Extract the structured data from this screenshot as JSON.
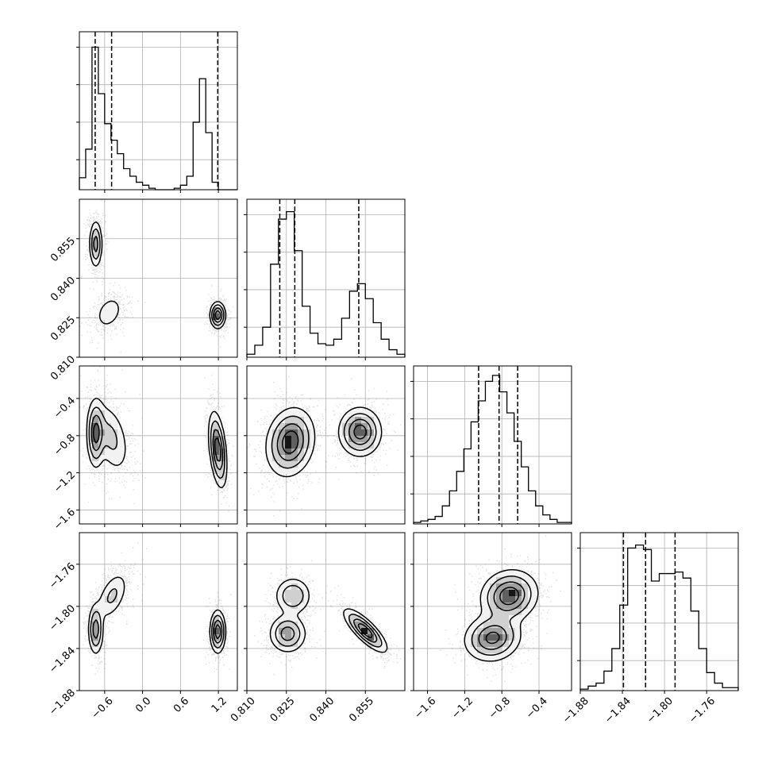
{
  "chart_data": {
    "type": "corner",
    "params": [
      {
        "ticks": [
          -0.6,
          0.0,
          0.6,
          1.2
        ],
        "tick_labels": [
          "−0.6",
          "0.0",
          "0.6",
          "1.2"
        ],
        "range": [
          -1.0,
          1.5
        ]
      },
      {
        "ticks": [
          0.81,
          0.825,
          0.84,
          0.855
        ],
        "tick_labels": [
          "0.810",
          "0.825",
          "0.840",
          "0.855"
        ],
        "range": [
          0.81,
          0.87
        ]
      },
      {
        "ticks": [
          -1.6,
          -1.2,
          -0.8,
          -0.4
        ],
        "tick_labels": [
          "−1.6",
          "−1.2",
          "−0.8",
          "−0.4"
        ],
        "range": [
          -1.75,
          -0.05
        ]
      },
      {
        "ticks": [
          -1.88,
          -1.84,
          -1.8,
          -1.76
        ],
        "tick_labels": [
          "−1.88",
          "−1.84",
          "−1.80",
          "−1.76"
        ],
        "range": [
          -1.88,
          -1.73
        ]
      }
    ],
    "histograms": [
      {
        "edges_range": [
          -1.0,
          1.5
        ],
        "counts": [
          0.08,
          0.27,
          0.95,
          0.64,
          0.44,
          0.33,
          0.24,
          0.14,
          0.09,
          0.05,
          0.03,
          0.01,
          0.0,
          0.0,
          0.0,
          0.01,
          0.03,
          0.09,
          0.45,
          0.74,
          0.38,
          0.05,
          0.0,
          0.0,
          0.0
        ],
        "quantiles": [
          -0.75,
          -0.49,
          1.19
        ]
      },
      {
        "edges_range": [
          0.81,
          0.87
        ],
        "counts": [
          0.02,
          0.08,
          0.2,
          0.62,
          0.92,
          0.97,
          0.71,
          0.34,
          0.16,
          0.09,
          0.08,
          0.12,
          0.26,
          0.44,
          0.49,
          0.39,
          0.23,
          0.12,
          0.05,
          0.02
        ],
        "quantiles": [
          0.8225,
          0.8282,
          0.8525
        ]
      },
      {
        "edges_range": [
          -1.75,
          -0.05
        ],
        "counts": [
          0.01,
          0.02,
          0.03,
          0.05,
          0.12,
          0.22,
          0.35,
          0.5,
          0.68,
          0.82,
          0.95,
          0.99,
          0.88,
          0.74,
          0.55,
          0.38,
          0.22,
          0.12,
          0.06,
          0.03,
          0.01,
          0.01
        ],
        "quantiles": [
          -1.05,
          -0.83,
          -0.63
        ]
      },
      {
        "edges_range": [
          -1.88,
          -1.73
        ],
        "counts": [
          0.01,
          0.03,
          0.05,
          0.13,
          0.28,
          0.57,
          0.95,
          0.97,
          0.94,
          0.73,
          0.78,
          0.78,
          0.79,
          0.75,
          0.53,
          0.28,
          0.12,
          0.05,
          0.02,
          0.02
        ],
        "quantiles": [
          -1.839,
          -1.818,
          -1.79
        ]
      }
    ],
    "pair_modes": [
      {
        "row": 1,
        "col": 0,
        "modes": [
          {
            "mx": -0.74,
            "my": 0.853,
            "sx": 0.05,
            "sy": 0.0045,
            "w": 0.38,
            "r": 0
          },
          {
            "mx": -0.53,
            "my": 0.827,
            "sx": 0.12,
            "sy": 0.0035,
            "w": 0.25,
            "r": 0.3
          },
          {
            "mx": 1.19,
            "my": 0.826,
            "sx": 0.06,
            "sy": 0.0025,
            "w": 0.37,
            "r": 0
          }
        ]
      },
      {
        "row": 2,
        "col": 0,
        "modes": [
          {
            "mx": -0.74,
            "my": -0.78,
            "sx": 0.07,
            "sy": 0.18,
            "w": 0.32,
            "r": 0
          },
          {
            "mx": -0.5,
            "my": -0.82,
            "sx": 0.15,
            "sy": 0.2,
            "w": 0.3,
            "r": -0.4
          },
          {
            "mx": 1.19,
            "my": -0.95,
            "sx": 0.07,
            "sy": 0.2,
            "w": 0.38,
            "r": -0.4
          }
        ]
      },
      {
        "row": 2,
        "col": 1,
        "modes": [
          {
            "mx": 0.8265,
            "my": -0.87,
            "sx": 0.0045,
            "sy": 0.18,
            "w": 0.62,
            "r": 0.15
          },
          {
            "mx": 0.853,
            "my": -0.76,
            "sx": 0.004,
            "sy": 0.13,
            "w": 0.38,
            "r": 0
          }
        ]
      },
      {
        "row": 3,
        "col": 0,
        "modes": [
          {
            "mx": -0.74,
            "my": -1.822,
            "sx": 0.06,
            "sy": 0.012,
            "w": 0.32,
            "r": 0
          },
          {
            "mx": -0.48,
            "my": -1.79,
            "sx": 0.13,
            "sy": 0.012,
            "w": 0.3,
            "r": 0.5
          },
          {
            "mx": 1.19,
            "my": -1.824,
            "sx": 0.06,
            "sy": 0.01,
            "w": 0.38,
            "r": 0
          }
        ]
      },
      {
        "row": 3,
        "col": 1,
        "modes": [
          {
            "mx": 0.8255,
            "my": -1.826,
            "sx": 0.0035,
            "sy": 0.009,
            "w": 0.35,
            "r": 0
          },
          {
            "mx": 0.8275,
            "my": -1.79,
            "sx": 0.0035,
            "sy": 0.009,
            "w": 0.27,
            "r": 0
          },
          {
            "mx": 0.855,
            "my": -1.823,
            "sx": 0.004,
            "sy": 0.01,
            "w": 0.38,
            "r": -0.8
          }
        ]
      },
      {
        "row": 3,
        "col": 2,
        "modes": [
          {
            "mx": -0.9,
            "my": -1.83,
            "sx": 0.15,
            "sy": 0.011,
            "w": 0.45,
            "r": 0.1
          },
          {
            "mx": -0.72,
            "my": -1.79,
            "sx": 0.15,
            "sy": 0.012,
            "w": 0.55,
            "r": 0.1
          }
        ]
      }
    ]
  }
}
